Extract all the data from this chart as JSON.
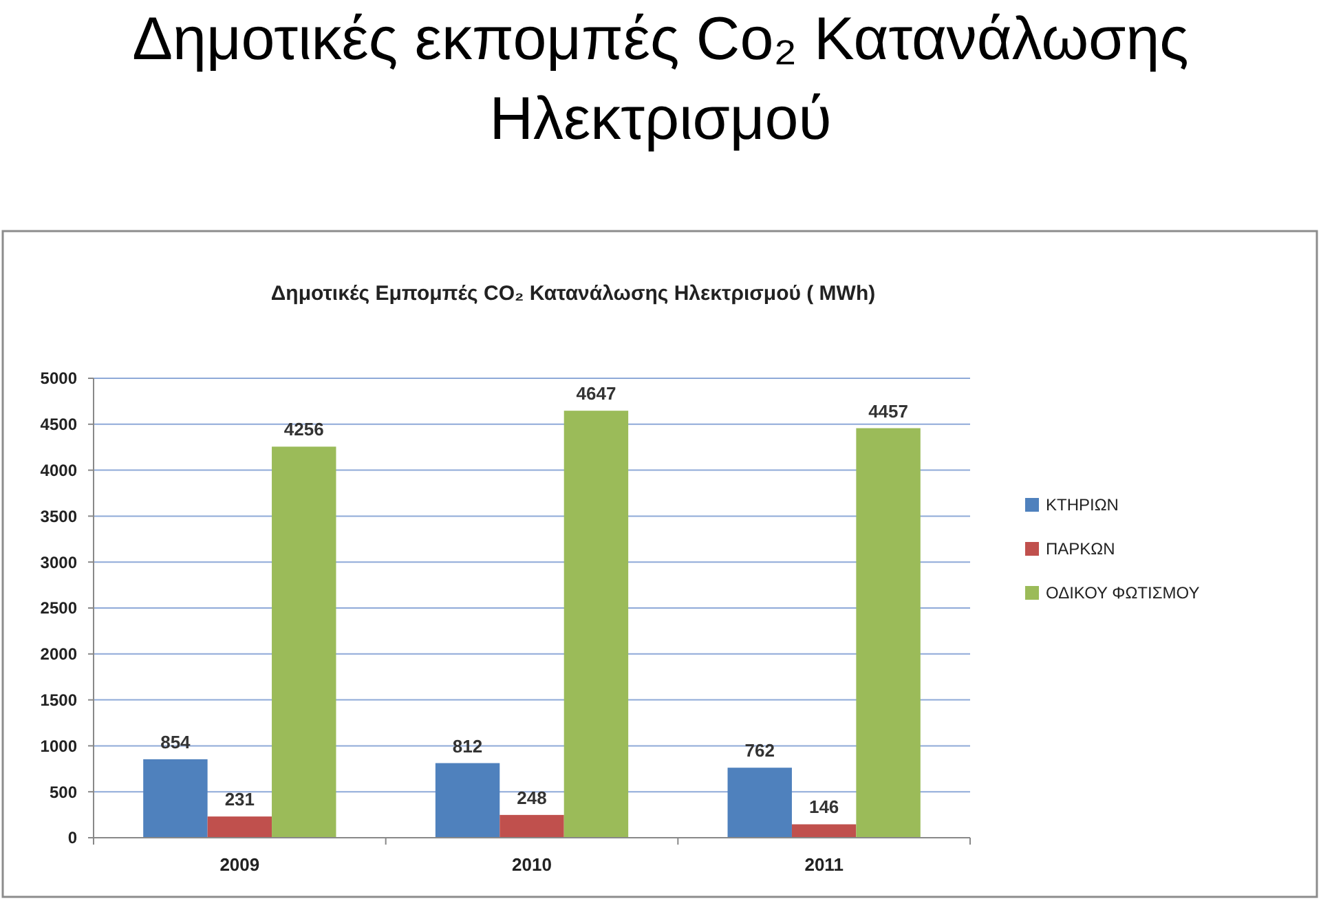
{
  "chart_data": {
    "type": "bar",
    "title": "Δημοτικές εκπομπές Co₂ Κατανάλωσης Ηλεκτρισμού",
    "subtitle": "Δημοτικές Εμπομπές CO₂ Κατανάλωσης Ηλεκτρισμού ( MWh)",
    "categories": [
      "2009",
      "2010",
      "2011"
    ],
    "series": [
      {
        "name": "ΚΤΗΡΙΩΝ",
        "color": "#4f81bd",
        "values": [
          854,
          812,
          762
        ]
      },
      {
        "name": "ΠΑΡΚΩΝ",
        "color": "#c0504d",
        "values": [
          231,
          248,
          146
        ]
      },
      {
        "name": "ΟΔΙΚΟΥ ΦΩΤΙΣΜΟΥ",
        "color": "#9bbb59",
        "values": [
          4256,
          4647,
          4457
        ]
      }
    ],
    "ylim": [
      0,
      5000
    ],
    "yticks": [
      0,
      500,
      1000,
      1500,
      2000,
      2500,
      3000,
      3500,
      4000,
      4500,
      5000
    ],
    "grid": "y",
    "legend": "right",
    "data_labels": true
  }
}
